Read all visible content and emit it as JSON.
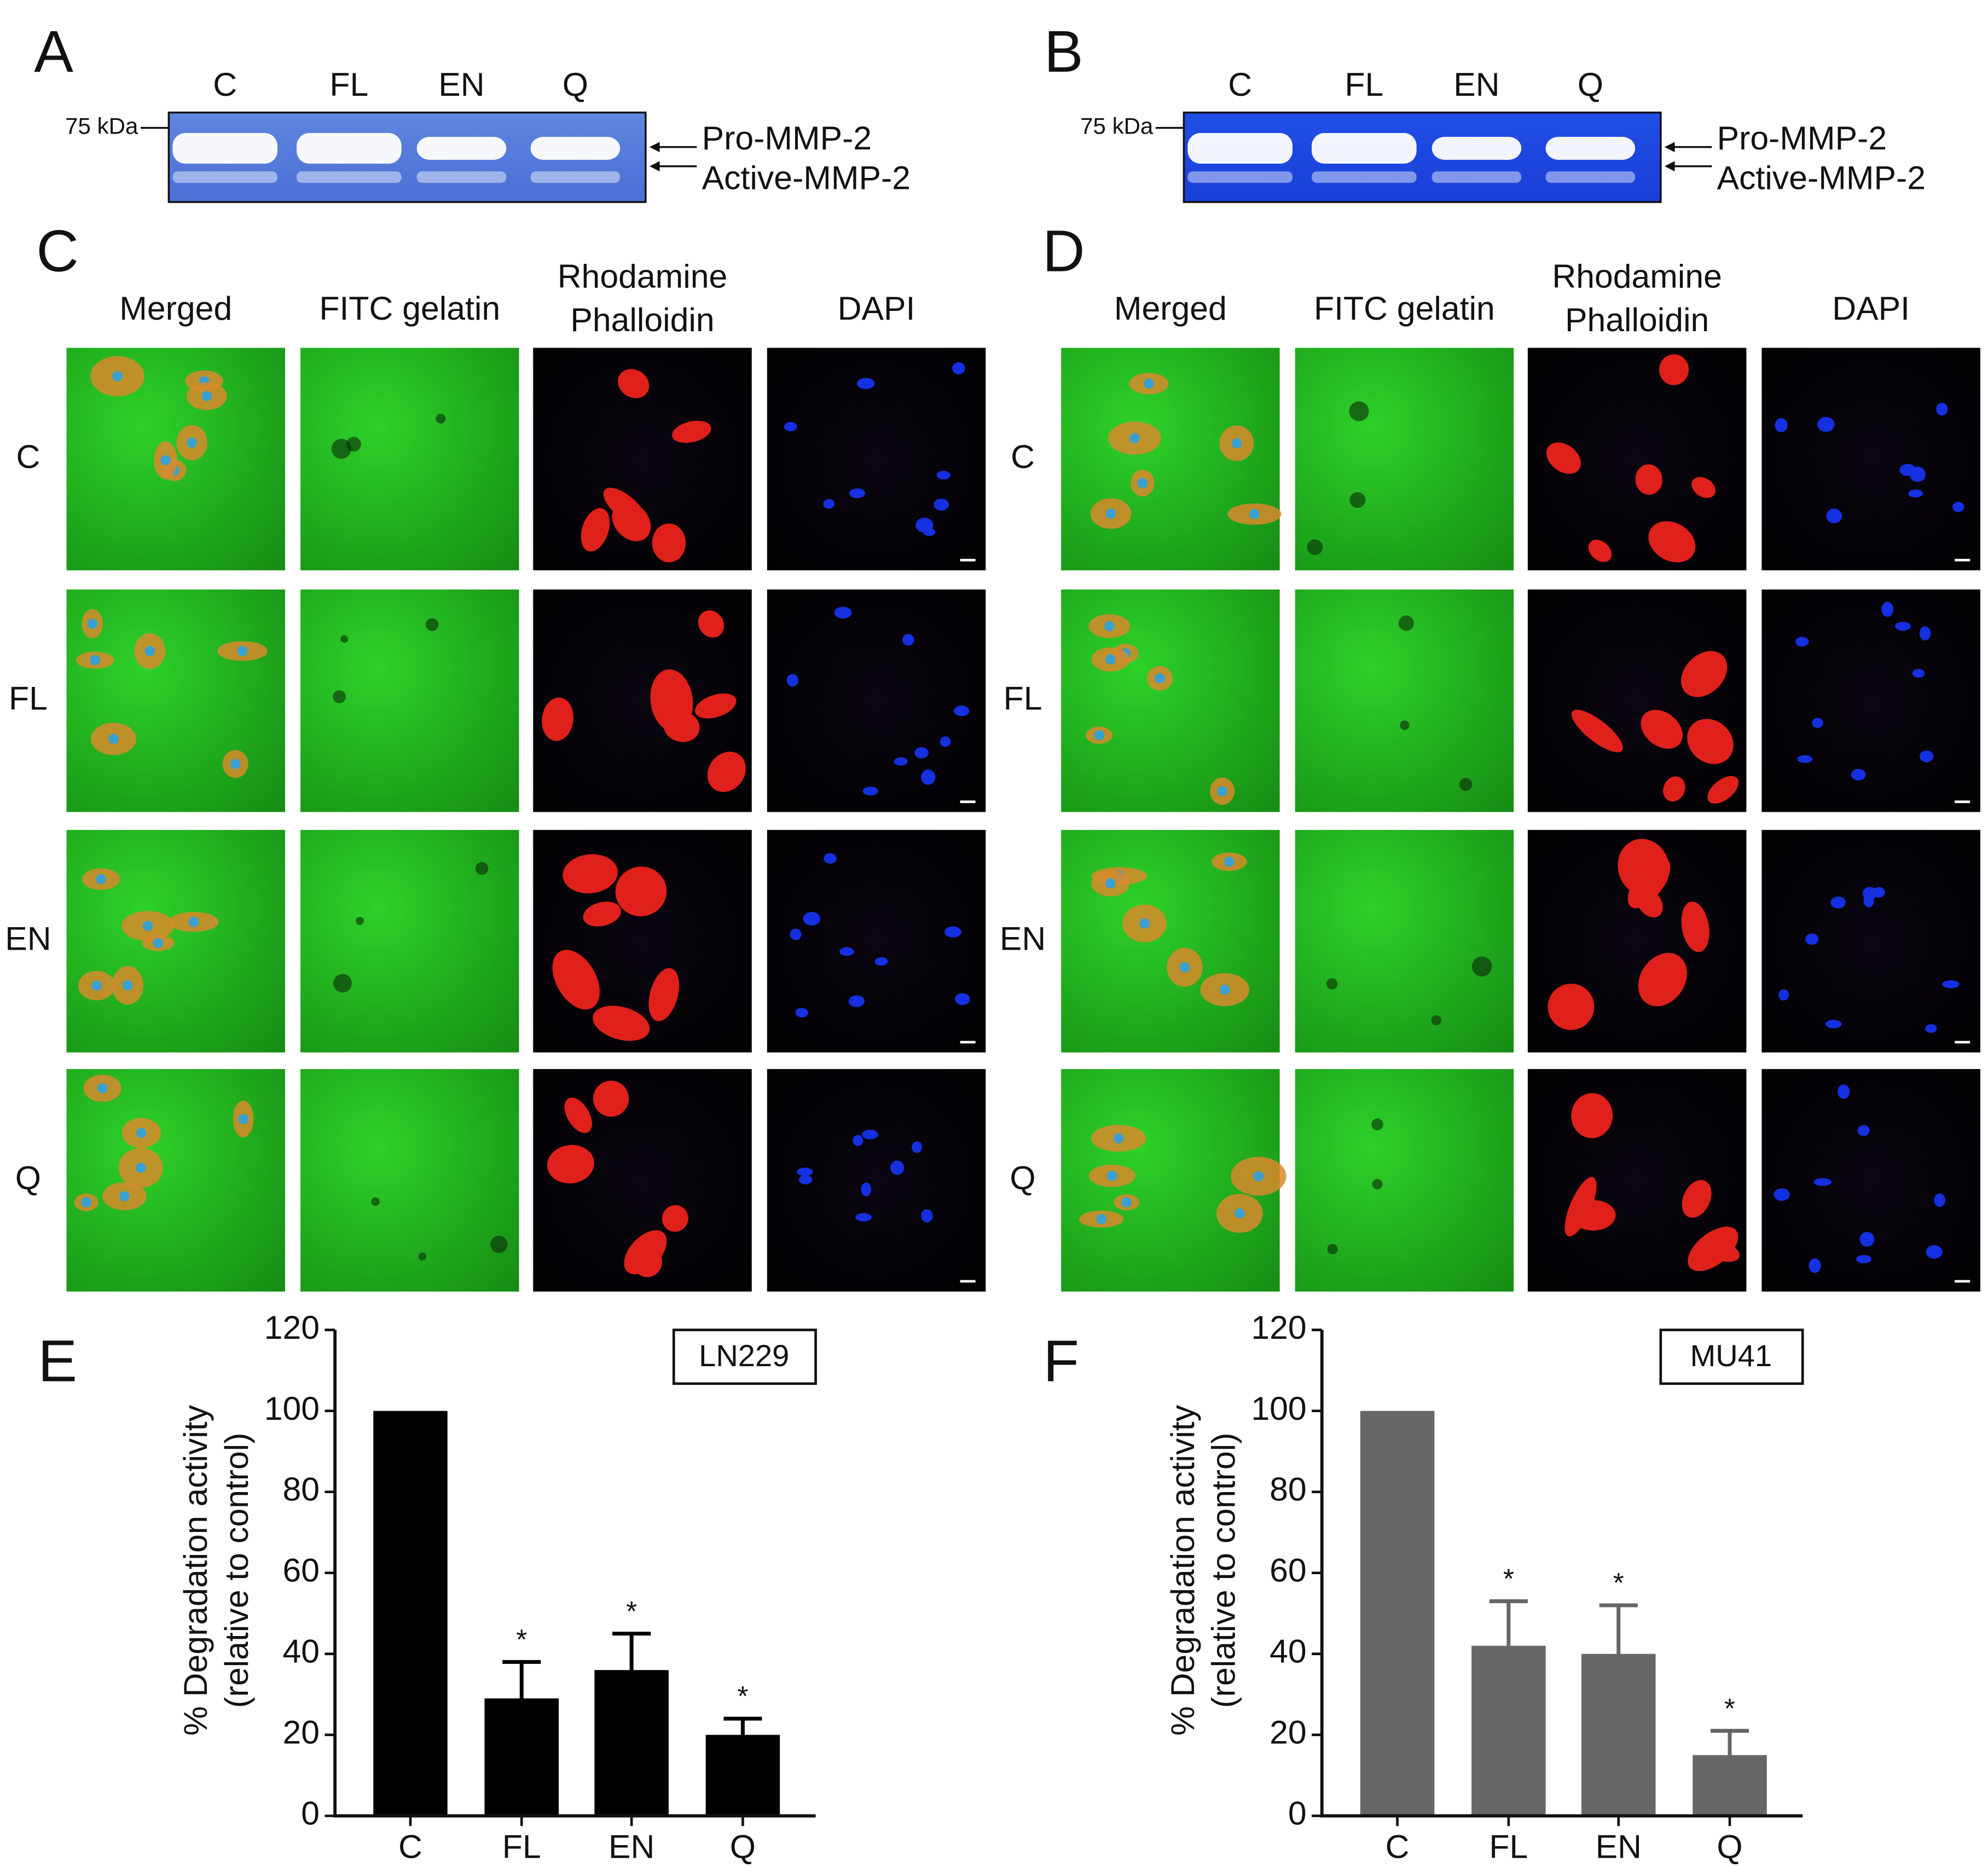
{
  "panel_labels": [
    "A",
    "B",
    "C",
    "D",
    "E",
    "F"
  ],
  "gels": [
    {
      "lanes": [
        "C",
        "FL",
        "EN",
        "Q"
      ],
      "marker": "75 kDa",
      "bands": [
        "Pro-MMP-2",
        "Active-MMP-2"
      ]
    },
    {
      "lanes": [
        "C",
        "FL",
        "EN",
        "Q"
      ],
      "marker": "75 kDa",
      "bands": [
        "Pro-MMP-2",
        "Active-MMP-2"
      ]
    }
  ],
  "microscopy": [
    {
      "columns": [
        [
          "Merged"
        ],
        [
          "FITC gelatin"
        ],
        [
          "Rhodamine",
          "Phalloidin"
        ],
        [
          "DAPI"
        ]
      ],
      "rows": [
        "C",
        "FL",
        "EN",
        "Q"
      ]
    },
    {
      "columns": [
        [
          "Merged"
        ],
        [
          "FITC gelatin"
        ],
        [
          "Rhodamine",
          "Phalloidin"
        ],
        [
          "DAPI"
        ]
      ],
      "rows": [
        "C",
        "FL",
        "EN",
        "Q"
      ]
    }
  ],
  "chart_data": [
    {
      "type": "bar",
      "title": "LN229",
      "ylabel": [
        "% Degradation activity",
        "(relative to control)"
      ],
      "categories": [
        "C",
        "FL",
        "EN",
        "Q"
      ],
      "values": [
        100,
        29,
        36,
        20
      ],
      "errors": [
        null,
        9,
        9,
        4
      ],
      "significance": [
        null,
        "*",
        "*",
        "*"
      ],
      "color": "#000000",
      "ylim": [
        0,
        120
      ],
      "yticks": [
        0,
        20,
        40,
        60,
        80,
        100,
        120
      ]
    },
    {
      "type": "bar",
      "title": "MU41",
      "ylabel": [
        "% Degradation activity",
        "(relative to control)"
      ],
      "categories": [
        "C",
        "FL",
        "EN",
        "Q"
      ],
      "values": [
        100,
        42,
        40,
        15
      ],
      "errors": [
        null,
        11,
        12,
        6
      ],
      "significance": [
        null,
        "*",
        "*",
        "*"
      ],
      "color": "#666666",
      "ylim": [
        0,
        120
      ],
      "yticks": [
        0,
        20,
        40,
        60,
        80,
        100,
        120
      ]
    }
  ]
}
